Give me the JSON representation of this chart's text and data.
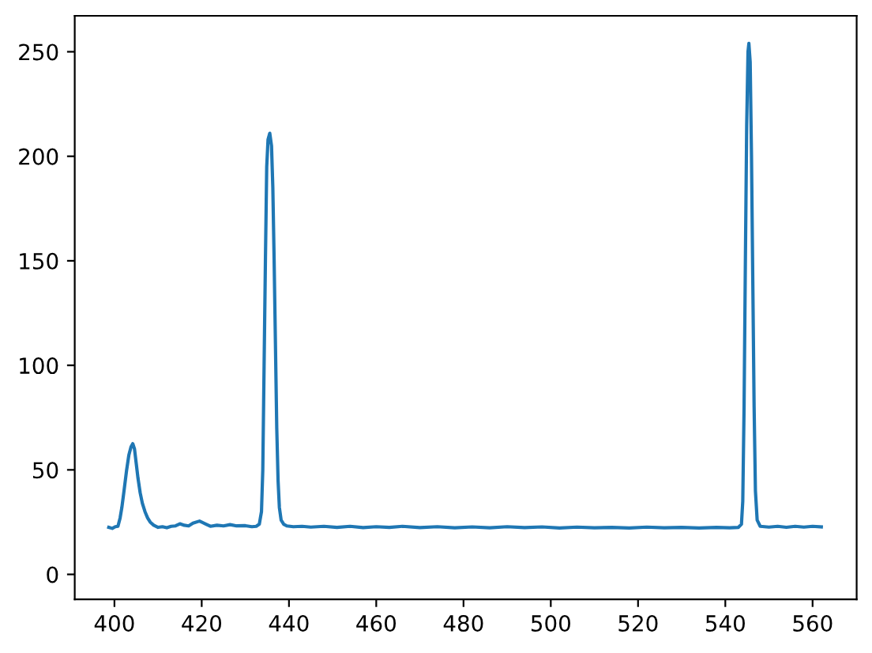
{
  "chart_data": {
    "type": "line",
    "x": [
      398.7,
      399.5,
      400.2,
      400.8,
      401.3,
      401.7,
      402.2,
      402.8,
      403.3,
      403.8,
      404.2,
      404.6,
      405.0,
      405.4,
      405.9,
      406.4,
      407.0,
      407.6,
      408.2,
      409.0,
      410.0,
      411.0,
      412.0,
      413.0,
      414.0,
      415.0,
      416.0,
      417.0,
      418.0,
      419.5,
      421.0,
      422.0,
      423.5,
      425.0,
      426.5,
      428.0,
      430.0,
      431.5,
      432.5,
      433.2,
      433.7,
      434.0,
      434.3,
      434.6,
      434.9,
      435.2,
      435.6,
      436.0,
      436.3,
      436.6,
      436.9,
      437.2,
      437.5,
      437.8,
      438.2,
      438.8,
      439.5,
      441,
      443,
      445,
      448,
      451,
      454,
      457,
      460,
      463,
      466,
      470,
      474,
      478,
      482,
      486,
      490,
      494,
      498,
      502,
      506,
      510,
      514,
      518,
      522,
      526,
      530,
      534,
      538,
      541,
      543,
      543.7,
      544.0,
      544.3,
      544.6,
      544.9,
      545.2,
      545.4,
      545.7,
      546.0,
      546.3,
      546.6,
      546.9,
      547.3,
      548,
      550,
      552,
      554,
      556,
      558,
      560,
      562
    ],
    "series": [
      {
        "color": "#1f77b4",
        "values": [
          22.5,
          22,
          22.8,
          23,
          27,
          32,
          40,
          50,
          57,
          61,
          62.5,
          60,
          53,
          46,
          39,
          34,
          30,
          27,
          25,
          23.5,
          22.5,
          22.8,
          22.3,
          23,
          23.2,
          24.2,
          23.5,
          23.2,
          24.5,
          25.5,
          24,
          23,
          23.5,
          23.2,
          23.8,
          23.2,
          23.3,
          22.8,
          23,
          24,
          30,
          50,
          100,
          150,
          195,
          208,
          211,
          205,
          185,
          150,
          110,
          70,
          45,
          32,
          26,
          24,
          23.2,
          22.8,
          23,
          22.6,
          23,
          22.5,
          23,
          22.4,
          22.8,
          22.5,
          23,
          22.4,
          22.8,
          22.3,
          22.7,
          22.3,
          22.8,
          22.4,
          22.7,
          22.2,
          22.6,
          22.3,
          22.5,
          22.2,
          22.6,
          22.3,
          22.5,
          22.2,
          22.5,
          22.3,
          22.5,
          24,
          35,
          80,
          150,
          215,
          250,
          254,
          245,
          200,
          140,
          80,
          40,
          26,
          23,
          22.6,
          23,
          22.5,
          23,
          22.6,
          23,
          22.7
        ]
      }
    ],
    "xlim": [
      390.9,
      570.1
    ],
    "ylim": [
      -11.9,
      267.2
    ],
    "xticks": [
      400,
      420,
      440,
      460,
      480,
      500,
      520,
      540,
      560
    ],
    "yticks": [
      0,
      50,
      100,
      150,
      200,
      250
    ],
    "line_style": "solid"
  }
}
